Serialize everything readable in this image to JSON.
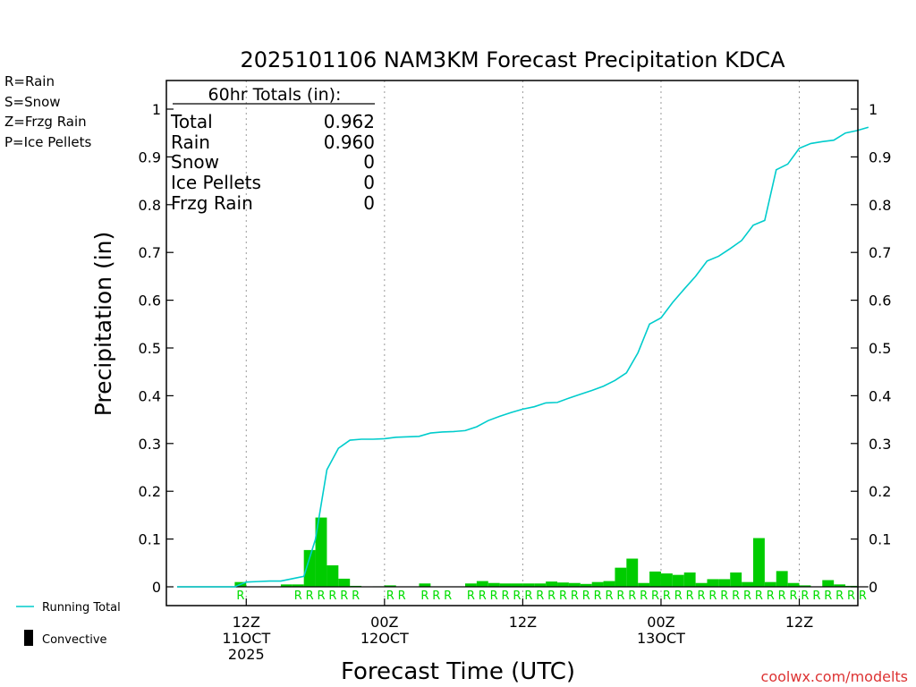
{
  "chart_data": {
    "type": "bar",
    "title": "2025101106 NAM3KM Forecast Precipitation KDCA",
    "xlabel": "Forecast Time (UTC)",
    "ylabel": "Precipitation (in)",
    "ylim": [
      -0.04,
      1.06
    ],
    "yticks": [
      0,
      0.1,
      0.2,
      0.3,
      0.4,
      0.5,
      0.6,
      0.7,
      0.8,
      0.9,
      1
    ],
    "ytick_labels": [
      "0",
      "0.1",
      "0.2",
      "0.3",
      "0.4",
      "0.5",
      "0.6",
      "0.7",
      "0.8",
      "0.9",
      "1"
    ],
    "xlim": [
      0,
      60
    ],
    "xtick_labels": [
      {
        "hour": 6,
        "lines": [
          "12Z",
          "11OCT",
          "2025"
        ]
      },
      {
        "hour": 18,
        "lines": [
          "00Z",
          "12OCT"
        ]
      },
      {
        "hour": 30,
        "lines": [
          "12Z"
        ]
      },
      {
        "hour": 42,
        "lines": [
          "00Z",
          "13OCT"
        ]
      },
      {
        "hour": 54,
        "lines": [
          "12Z"
        ]
      }
    ],
    "legend": {
      "types": [
        {
          "label": "R=Rain",
          "color": "#00dd00"
        },
        {
          "label": "S=Snow",
          "color": "#3355ff"
        },
        {
          "label": "Z=Frzg Rain",
          "color": "#ff8844"
        },
        {
          "label": "P=Ice Pellets",
          "color": "#ee2288"
        }
      ],
      "running_total": "Running Total",
      "convective": "Convective"
    },
    "totals": {
      "heading": "60hr Totals (in):",
      "rows": [
        {
          "label": "Total",
          "value": "0.962"
        },
        {
          "label": "Rain",
          "value": "0.960"
        },
        {
          "label": "Snow",
          "value": "0"
        },
        {
          "label": "Ice Pellets",
          "value": "0"
        },
        {
          "label": "Frzg Rain",
          "value": "0"
        }
      ]
    },
    "bar_color": "#00cc00",
    "line_color": "#00cccc",
    "hourly_precip": [
      {
        "hour": 6,
        "value": 0.01
      },
      {
        "hour": 10,
        "value": 0.005
      },
      {
        "hour": 11,
        "value": 0.005
      },
      {
        "hour": 12,
        "value": 0.077
      },
      {
        "hour": 13,
        "value": 0.145
      },
      {
        "hour": 14,
        "value": 0.045
      },
      {
        "hour": 15,
        "value": 0.017
      },
      {
        "hour": 16,
        "value": 0.002
      },
      {
        "hour": 18,
        "value": 0.001
      },
      {
        "hour": 19,
        "value": 0.003
      },
      {
        "hour": 22,
        "value": 0.007
      },
      {
        "hour": 26,
        "value": 0.007
      },
      {
        "hour": 27,
        "value": 0.012
      },
      {
        "hour": 28,
        "value": 0.008
      },
      {
        "hour": 29,
        "value": 0.007
      },
      {
        "hour": 30,
        "value": 0.007
      },
      {
        "hour": 31,
        "value": 0.007
      },
      {
        "hour": 32,
        "value": 0.007
      },
      {
        "hour": 33,
        "value": 0.011
      },
      {
        "hour": 34,
        "value": 0.009
      },
      {
        "hour": 35,
        "value": 0.008
      },
      {
        "hour": 36,
        "value": 0.006
      },
      {
        "hour": 37,
        "value": 0.01
      },
      {
        "hour": 38,
        "value": 0.012
      },
      {
        "hour": 39,
        "value": 0.04
      },
      {
        "hour": 40,
        "value": 0.059
      },
      {
        "hour": 41,
        "value": 0.008
      },
      {
        "hour": 42,
        "value": 0.032
      },
      {
        "hour": 43,
        "value": 0.028
      },
      {
        "hour": 44,
        "value": 0.025
      },
      {
        "hour": 45,
        "value": 0.03
      },
      {
        "hour": 46,
        "value": 0.008
      },
      {
        "hour": 47,
        "value": 0.016
      },
      {
        "hour": 48,
        "value": 0.016
      },
      {
        "hour": 49,
        "value": 0.03
      },
      {
        "hour": 50,
        "value": 0.01
      },
      {
        "hour": 51,
        "value": 0.102
      },
      {
        "hour": 52,
        "value": 0.01
      },
      {
        "hour": 53,
        "value": 0.033
      },
      {
        "hour": 54,
        "value": 0.008
      },
      {
        "hour": 55,
        "value": 0.003
      },
      {
        "hour": 57,
        "value": 0.014
      },
      {
        "hour": 58,
        "value": 0.005
      },
      {
        "hour": 59,
        "value": 0.002
      }
    ],
    "running_total": [
      {
        "hour": 0,
        "value": 0
      },
      {
        "hour": 1,
        "value": 0
      },
      {
        "hour": 2,
        "value": 0
      },
      {
        "hour": 3,
        "value": 0
      },
      {
        "hour": 4,
        "value": 0
      },
      {
        "hour": 5,
        "value": 0
      },
      {
        "hour": 6,
        "value": 0.01
      },
      {
        "hour": 7,
        "value": 0.011
      },
      {
        "hour": 8,
        "value": 0.012
      },
      {
        "hour": 9,
        "value": 0.012
      },
      {
        "hour": 10,
        "value": 0.017
      },
      {
        "hour": 11,
        "value": 0.022
      },
      {
        "hour": 12,
        "value": 0.099
      },
      {
        "hour": 13,
        "value": 0.245
      },
      {
        "hour": 14,
        "value": 0.29
      },
      {
        "hour": 15,
        "value": 0.307
      },
      {
        "hour": 16,
        "value": 0.309
      },
      {
        "hour": 17,
        "value": 0.309
      },
      {
        "hour": 18,
        "value": 0.31
      },
      {
        "hour": 19,
        "value": 0.313
      },
      {
        "hour": 20,
        "value": 0.314
      },
      {
        "hour": 21,
        "value": 0.315
      },
      {
        "hour": 22,
        "value": 0.322
      },
      {
        "hour": 23,
        "value": 0.324
      },
      {
        "hour": 24,
        "value": 0.325
      },
      {
        "hour": 25,
        "value": 0.327
      },
      {
        "hour": 26,
        "value": 0.335
      },
      {
        "hour": 27,
        "value": 0.348
      },
      {
        "hour": 28,
        "value": 0.357
      },
      {
        "hour": 29,
        "value": 0.365
      },
      {
        "hour": 30,
        "value": 0.372
      },
      {
        "hour": 31,
        "value": 0.377
      },
      {
        "hour": 32,
        "value": 0.385
      },
      {
        "hour": 33,
        "value": 0.386
      },
      {
        "hour": 34,
        "value": 0.395
      },
      {
        "hour": 35,
        "value": 0.403
      },
      {
        "hour": 36,
        "value": 0.411
      },
      {
        "hour": 37,
        "value": 0.42
      },
      {
        "hour": 38,
        "value": 0.432
      },
      {
        "hour": 39,
        "value": 0.448
      },
      {
        "hour": 40,
        "value": 0.49
      },
      {
        "hour": 41,
        "value": 0.55
      },
      {
        "hour": 42,
        "value": 0.563
      },
      {
        "hour": 43,
        "value": 0.595
      },
      {
        "hour": 44,
        "value": 0.623
      },
      {
        "hour": 45,
        "value": 0.65
      },
      {
        "hour": 46,
        "value": 0.682
      },
      {
        "hour": 47,
        "value": 0.692
      },
      {
        "hour": 48,
        "value": 0.708
      },
      {
        "hour": 49,
        "value": 0.725
      },
      {
        "hour": 50,
        "value": 0.757
      },
      {
        "hour": 51,
        "value": 0.767
      },
      {
        "hour": 52,
        "value": 0.873
      },
      {
        "hour": 53,
        "value": 0.885
      },
      {
        "hour": 54,
        "value": 0.918
      },
      {
        "hour": 55,
        "value": 0.928
      },
      {
        "hour": 56,
        "value": 0.932
      },
      {
        "hour": 57,
        "value": 0.935
      },
      {
        "hour": 58,
        "value": 0.95
      },
      {
        "hour": 59,
        "value": 0.955
      },
      {
        "hour": 60,
        "value": 0.962
      }
    ],
    "precip_type_labels": [
      {
        "hour": 6,
        "type": "R"
      },
      {
        "hour": 11,
        "type": "R"
      },
      {
        "hour": 12,
        "type": "R"
      },
      {
        "hour": 13,
        "type": "R"
      },
      {
        "hour": 14,
        "type": "R"
      },
      {
        "hour": 15,
        "type": "R"
      },
      {
        "hour": 16,
        "type": "R"
      },
      {
        "hour": 19,
        "type": "R"
      },
      {
        "hour": 20,
        "type": "R"
      },
      {
        "hour": 22,
        "type": "R"
      },
      {
        "hour": 23,
        "type": "R"
      },
      {
        "hour": 24,
        "type": "R"
      },
      {
        "hour": 26,
        "type": "R"
      },
      {
        "hour": 27,
        "type": "R"
      },
      {
        "hour": 28,
        "type": "R"
      },
      {
        "hour": 29,
        "type": "R"
      },
      {
        "hour": 30,
        "type": "R"
      },
      {
        "hour": 31,
        "type": "R"
      },
      {
        "hour": 32,
        "type": "R"
      },
      {
        "hour": 33,
        "type": "R"
      },
      {
        "hour": 34,
        "type": "R"
      },
      {
        "hour": 35,
        "type": "R"
      },
      {
        "hour": 36,
        "type": "R"
      },
      {
        "hour": 37,
        "type": "R"
      },
      {
        "hour": 38,
        "type": "R"
      },
      {
        "hour": 39,
        "type": "R"
      },
      {
        "hour": 40,
        "type": "R"
      },
      {
        "hour": 41,
        "type": "R"
      },
      {
        "hour": 42,
        "type": "R"
      },
      {
        "hour": 43,
        "type": "R"
      },
      {
        "hour": 44,
        "type": "R"
      },
      {
        "hour": 45,
        "type": "R"
      },
      {
        "hour": 46,
        "type": "R"
      },
      {
        "hour": 47,
        "type": "R"
      },
      {
        "hour": 48,
        "type": "R"
      },
      {
        "hour": 49,
        "type": "R"
      },
      {
        "hour": 50,
        "type": "R"
      },
      {
        "hour": 51,
        "type": "R"
      },
      {
        "hour": 52,
        "type": "R"
      },
      {
        "hour": 53,
        "type": "R"
      },
      {
        "hour": 54,
        "type": "R"
      },
      {
        "hour": 55,
        "type": "R"
      },
      {
        "hour": 56,
        "type": "R"
      },
      {
        "hour": 57,
        "type": "R"
      },
      {
        "hour": 58,
        "type": "R"
      },
      {
        "hour": 59,
        "type": "R"
      },
      {
        "hour": 60,
        "type": "R"
      }
    ],
    "credit": "coolwx.com/modelts"
  }
}
